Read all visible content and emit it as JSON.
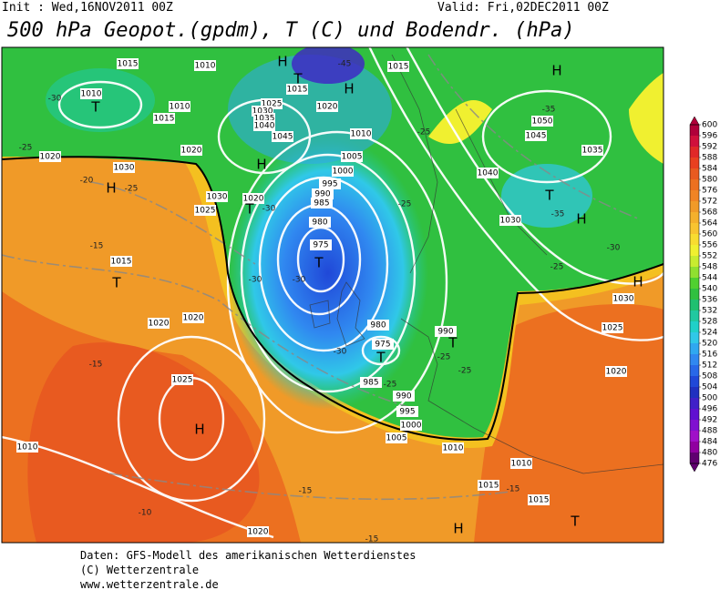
{
  "header": {
    "init": "Init : Wed,16NOV2011 00Z",
    "valid": "Valid: Fri,02DEC2011 00Z",
    "title": "500 hPa Geopot.(gpdm), T (C) und Bodendr. (hPa)"
  },
  "colorbar": {
    "labels": [
      600,
      596,
      592,
      588,
      584,
      580,
      576,
      572,
      568,
      564,
      560,
      556,
      552,
      548,
      544,
      540,
      536,
      532,
      528,
      524,
      520,
      516,
      512,
      508,
      504,
      500,
      496,
      492,
      488,
      484,
      480,
      476
    ],
    "colors": [
      "#b0003a",
      "#d0103c",
      "#e02828",
      "#e84020",
      "#e85a20",
      "#ec7020",
      "#f08424",
      "#f09a28",
      "#f4b02c",
      "#f8c430",
      "#f8dc30",
      "#f0f030",
      "#c8ec30",
      "#90e030",
      "#50d030",
      "#30c040",
      "#20c070",
      "#20c8a0",
      "#20d0c8",
      "#30c8e8",
      "#30a8f0",
      "#3088f0",
      "#2868e8",
      "#2048d8",
      "#2030c0",
      "#4020c8",
      "#6010d0",
      "#8010d0",
      "#a010c8",
      "#9000a0",
      "#600070"
    ]
  },
  "map_labels": [
    "1015",
    "1010",
    "1010",
    "T",
    "1010",
    "1015",
    "-30",
    "-25",
    "1020",
    "1020",
    "1030",
    "H",
    "-20",
    "-25",
    "1025",
    "1030",
    "1020",
    "T",
    "-30",
    "H",
    "H",
    "T",
    "-45",
    "1015",
    "H",
    "1015",
    "1020",
    "1025",
    "1030",
    "1035",
    "1040",
    "1045",
    "1010",
    "1005",
    "1000",
    "995",
    "990",
    "985",
    "980",
    "975",
    "T",
    "-30",
    "-30",
    "-25",
    "-25",
    "1040",
    "1050",
    "1045",
    "1035",
    "-35",
    "H",
    "T",
    "-35",
    "H",
    "1030",
    "-30",
    "-25",
    "H",
    "1030",
    "1025",
    "1020",
    "-15",
    "1015",
    "T",
    "1020",
    "1020",
    "-15",
    "1025",
    "H",
    "1010",
    "980",
    "975",
    "T",
    "-30",
    "985",
    "-25",
    "990",
    "995",
    "1000",
    "1005",
    "1010",
    "990",
    "T",
    "-25",
    "-25",
    "1010",
    "-15",
    "1015",
    "-15",
    "1015",
    "-10",
    "1020",
    "-15",
    "H",
    "T"
  ],
  "footer": [
    "Daten: GFS-Modell des amerikanischen Wetterdienstes",
    "(C) Wetterzentrale",
    "www.wetterzentrale.de"
  ]
}
